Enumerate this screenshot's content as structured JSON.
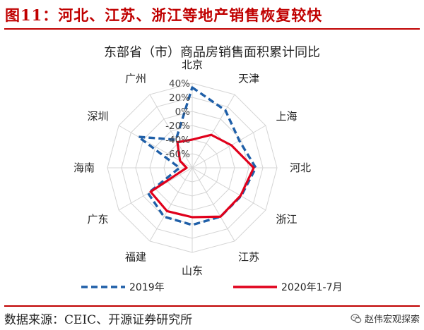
{
  "figure": {
    "title": "图11：河北、江苏、浙江等地产销售恢复较快",
    "source": "数据来源：CEIC、开源证券研究所",
    "watermark": "赵伟宏观探索",
    "watermark_icon": "wechat-icon"
  },
  "chart_data": {
    "type": "radar",
    "title": "东部省（市）商品房销售面积累计同比",
    "categories": [
      "北京",
      "天津",
      "上海",
      "河北",
      "浙江",
      "江苏",
      "山东",
      "福建",
      "广东",
      "海南",
      "深圳",
      "广州"
    ],
    "axis": {
      "min": -80,
      "max": 40,
      "ticks": [
        40,
        20,
        0,
        -20,
        -40,
        -60
      ],
      "tick_labels": [
        "40%",
        "20%",
        "0%",
        "-20%",
        "-40%",
        "-60%"
      ],
      "grid": true
    },
    "legend": {
      "position": "bottom"
    },
    "series": [
      {
        "name": "2019年",
        "color": "#1f5fa8",
        "dash": "dashed",
        "values": [
          34,
          14,
          -3,
          10,
          0,
          0,
          1,
          0,
          -8,
          -62,
          8,
          -34
        ]
      },
      {
        "name": "2020年1-7月",
        "color": "#e0001b",
        "dash": "solid",
        "values": [
          -40,
          -26,
          -16,
          7,
          -1,
          0,
          -10,
          -9,
          -12,
          -72,
          -60,
          -38
        ]
      }
    ]
  }
}
